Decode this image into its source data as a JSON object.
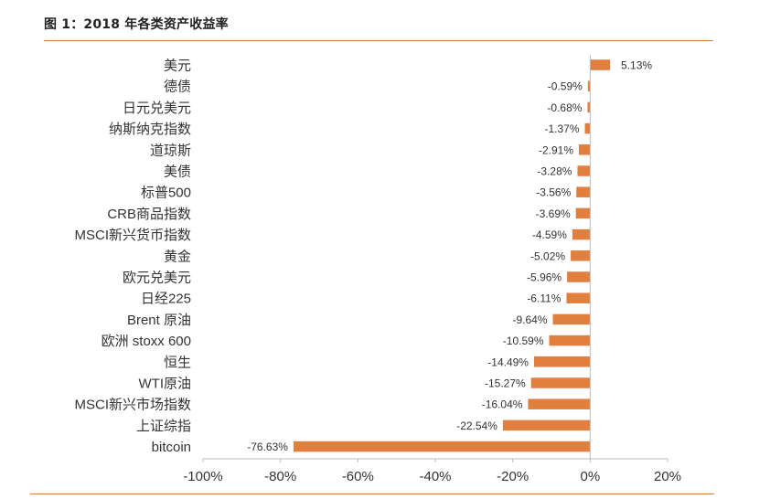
{
  "title": "图 1：2018 年各类资产收益率",
  "colors": {
    "bar": "#e07f3e",
    "rule": "#c7874e",
    "text": "#333333",
    "axis": "#bbbbbb"
  },
  "chart_data": {
    "type": "bar",
    "orientation": "horizontal",
    "categories": [
      "美元",
      "德债",
      "日元兑美元",
      "纳斯纳克指数",
      "道琼斯",
      "美债",
      "标普500",
      "CRB商品指数",
      "MSCI新兴货币指数",
      "黄金",
      "欧元兑美元",
      "日经225",
      "Brent 原油",
      "欧洲 stoxx 600",
      "恒生",
      "WTI原油",
      "MSCI新兴市场指数",
      "上证综指",
      "bitcoin"
    ],
    "values": [
      5.13,
      -0.59,
      -0.68,
      -1.37,
      -2.91,
      -3.28,
      -3.56,
      -3.69,
      -4.59,
      -5.02,
      -5.96,
      -6.11,
      -9.64,
      -10.59,
      -14.49,
      -15.27,
      -16.04,
      -22.54,
      -76.63
    ],
    "data_labels": [
      "5.13%",
      "-0.59%",
      "-0.68%",
      "-1.37%",
      "-2.91%",
      "-3.28%",
      "-3.56%",
      "-3.69%",
      "-4.59%",
      "-5.02%",
      "-5.96%",
      "-6.11%",
      "-9.64%",
      "-10.59%",
      "-14.49%",
      "-15.27%",
      "-16.04%",
      "-22.54%",
      "-76.63%"
    ],
    "xlim": [
      -100,
      20
    ],
    "xticks": [
      -100,
      -80,
      -60,
      -40,
      -20,
      0,
      20
    ],
    "xtick_labels": [
      "-100%",
      "-80%",
      "-60%",
      "-40%",
      "-20%",
      "0%",
      "20%"
    ],
    "xlabel": "",
    "ylabel": "",
    "grid": false,
    "legend": "none"
  }
}
